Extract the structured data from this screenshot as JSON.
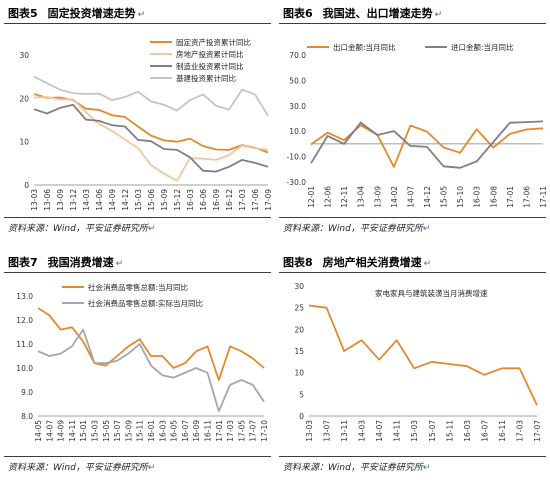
{
  "panels": [
    {
      "label": "图表5",
      "title": "固定投资增速走势",
      "source": "资料来源：Wind，平安证券研究所"
    },
    {
      "label": "图表6",
      "title": "我国进、出口增速走势",
      "source": "资料来源：Wind，平安证券研究所"
    },
    {
      "label": "图表7",
      "title": "我国消费增速",
      "source": "资料来源：Wind，平安证券研究所"
    },
    {
      "label": "图表8",
      "title": "房地产相关消费增速",
      "source": "资料来源：Wind，平安证券研究所"
    }
  ],
  "chart_data": [
    {
      "type": "line",
      "ylim": [
        0,
        30
      ],
      "yticks": [
        "0",
        "10",
        "20",
        "30"
      ],
      "x": [
        "13-03",
        "13-06",
        "13-09",
        "13-12",
        "14-03",
        "14-06",
        "14-09",
        "14-12",
        "15-03",
        "15-06",
        "15-09",
        "15-12",
        "16-03",
        "16-06",
        "16-09",
        "16-12",
        "17-03",
        "17-06",
        "17-09"
      ],
      "series": [
        {
          "name": "固定资产投资累计同比",
          "color": "#e08a2e",
          "values": [
            21.0,
            20.1,
            20.2,
            19.6,
            17.6,
            17.3,
            16.1,
            15.7,
            13.5,
            11.4,
            10.3,
            10.0,
            10.7,
            9.0,
            8.2,
            8.1,
            9.2,
            8.6,
            7.5
          ]
        },
        {
          "name": "房地产投资累计同比",
          "color": "#f2c7a0",
          "values": [
            20.2,
            20.3,
            19.7,
            19.8,
            16.8,
            14.1,
            12.5,
            10.5,
            8.5,
            4.6,
            2.6,
            1.0,
            6.2,
            6.1,
            5.8,
            6.9,
            9.1,
            8.5,
            8.1
          ]
        },
        {
          "name": "制造业投资累计同比",
          "color": "#7f7f7f",
          "values": [
            17.5,
            16.5,
            17.8,
            18.5,
            15.1,
            14.8,
            13.8,
            13.5,
            10.4,
            10.1,
            8.3,
            8.1,
            6.4,
            3.3,
            3.1,
            4.2,
            5.8,
            5.1,
            4.2
          ]
        },
        {
          "name": "基建投资累计同比",
          "color": "#c4c4c4",
          "values": [
            25.0,
            23.5,
            22.0,
            21.2,
            21.0,
            21.1,
            19.6,
            20.3,
            21.5,
            19.3,
            18.5,
            17.2,
            19.6,
            20.9,
            18.3,
            17.4,
            22.0,
            20.9,
            16.0
          ]
        }
      ]
    },
    {
      "type": "line",
      "ylim": [
        -30,
        70
      ],
      "yticks": [
        "70.0",
        "50.0",
        "30.0",
        "10.0",
        "-10.0",
        "-30.0"
      ],
      "x": [
        "12-01",
        "12-06",
        "12-11",
        "13-04",
        "13-09",
        "14-02",
        "14-07",
        "14-12",
        "15-05",
        "15-10",
        "16-03",
        "16-08",
        "17-01",
        "17-06",
        "17-11"
      ],
      "series": [
        {
          "name": "出口金额:当月同比",
          "color": "#e08a2e",
          "values": [
            -0.5,
            8.9,
            2.9,
            14.7,
            7.2,
            -18.1,
            14.5,
            9.7,
            -2.8,
            -6.9,
            11.5,
            -2.8,
            7.9,
            11.3,
            12.3
          ]
        },
        {
          "name": "进口金额:当月同比",
          "color": "#7f7f7f",
          "values": [
            -15.3,
            6.3,
            0.0,
            16.8,
            7.0,
            10.1,
            -1.6,
            -2.4,
            -17.6,
            -18.8,
            -13.8,
            1.5,
            16.7,
            17.2,
            17.7
          ]
        }
      ]
    },
    {
      "type": "line",
      "ylim": [
        8.0,
        13.0
      ],
      "yticks": [
        "13.0",
        "12.0",
        "11.0",
        "10.0",
        "9.0",
        "8.0"
      ],
      "x": [
        "14-05",
        "14-07",
        "14-09",
        "14-11",
        "15-01",
        "15-03",
        "15-05",
        "15-07",
        "15-09",
        "15-11",
        "16-01",
        "16-03",
        "16-05",
        "16-07",
        "16-09",
        "16-11",
        "17-01",
        "17-03",
        "17-05",
        "17-07",
        "17-10"
      ],
      "series": [
        {
          "name": "社会消费品零售总额:当月同比",
          "color": "#e08a2e",
          "values": [
            12.5,
            12.2,
            11.6,
            11.7,
            11.1,
            10.2,
            10.1,
            10.5,
            10.9,
            11.2,
            10.5,
            10.5,
            10.0,
            10.2,
            10.7,
            10.9,
            9.5,
            10.9,
            10.7,
            10.4,
            10.0
          ]
        },
        {
          "name": "社会消费品零售总额:实际当月同比",
          "color": "#a6a6a6",
          "values": [
            10.7,
            10.5,
            10.6,
            10.9,
            11.6,
            10.2,
            10.2,
            10.3,
            10.6,
            11.0,
            10.1,
            9.7,
            9.6,
            9.8,
            10.0,
            9.8,
            8.2,
            9.3,
            9.5,
            9.3,
            8.6
          ]
        }
      ]
    },
    {
      "type": "line",
      "ylim": [
        0,
        30
      ],
      "yticks": [
        "30",
        "25",
        "20",
        "15",
        "10",
        "5",
        "0"
      ],
      "x": [
        "13-03",
        "13-07",
        "13-11",
        "14-03",
        "14-07",
        "14-11",
        "15-03",
        "15-07",
        "15-11",
        "16-03",
        "16-07",
        "16-11",
        "17-03",
        "17-07"
      ],
      "series": [
        {
          "name": "家电家具与建筑装潢当月消费增速",
          "color": "#e08a2e",
          "values": [
            25.5,
            25.0,
            15.0,
            17.5,
            13.0,
            17.5,
            11.0,
            12.5,
            12.0,
            11.5,
            9.5,
            11.0,
            11.0,
            2.5
          ]
        }
      ]
    }
  ]
}
